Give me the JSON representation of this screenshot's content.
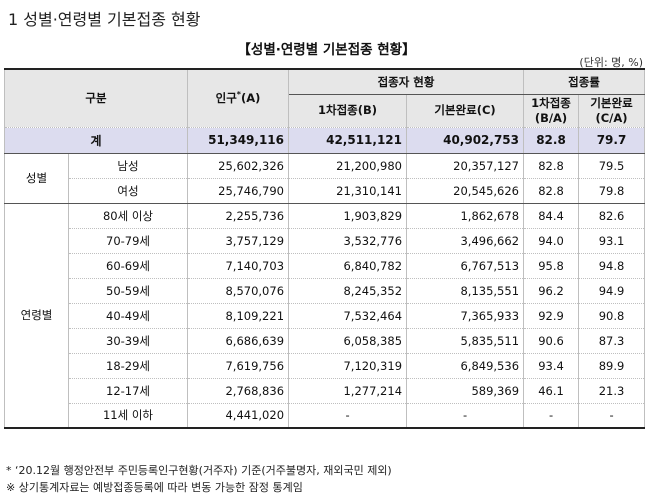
{
  "page_heading": "1 성별·연령별 기본접종 현황",
  "table_title": "【성별·연령별 기본접종 현황】",
  "unit_note": "(단위: 명, %)",
  "headers": {
    "category": "구분",
    "population": "인구",
    "population_mark": "*",
    "population_suffix": "(A)",
    "vaccinated_group": "접종자 현황",
    "first_dose": "1차접종(B)",
    "completed": "기본완료(C)",
    "rate_group": "접종률",
    "first_rate_line1": "1차접종",
    "first_rate_line2": "(B/A)",
    "completed_rate_line1": "기본완료",
    "completed_rate_line2": "(C/A)"
  },
  "total": {
    "label": "계",
    "population": "51,349,116",
    "first_dose": "42,511,121",
    "completed": "40,902,753",
    "first_rate": "82.8",
    "completed_rate": "79.7"
  },
  "groups": [
    {
      "name": "성별",
      "rows": [
        {
          "label": "남성",
          "population": "25,602,326",
          "first_dose": "21,200,980",
          "completed": "20,357,127",
          "first_rate": "82.8",
          "completed_rate": "79.5"
        },
        {
          "label": "여성",
          "population": "25,746,790",
          "first_dose": "21,310,141",
          "completed": "20,545,626",
          "first_rate": "82.8",
          "completed_rate": "79.8"
        }
      ]
    },
    {
      "name": "연령별",
      "rows": [
        {
          "label": "80세 이상",
          "population": "2,255,736",
          "first_dose": "1,903,829",
          "completed": "1,862,678",
          "first_rate": "84.4",
          "completed_rate": "82.6"
        },
        {
          "label": "70-79세",
          "population": "3,757,129",
          "first_dose": "3,532,776",
          "completed": "3,496,662",
          "first_rate": "94.0",
          "completed_rate": "93.1"
        },
        {
          "label": "60-69세",
          "population": "7,140,703",
          "first_dose": "6,840,782",
          "completed": "6,767,513",
          "first_rate": "95.8",
          "completed_rate": "94.8"
        },
        {
          "label": "50-59세",
          "population": "8,570,076",
          "first_dose": "8,245,352",
          "completed": "8,135,551",
          "first_rate": "96.2",
          "completed_rate": "94.9"
        },
        {
          "label": "40-49세",
          "population": "8,109,221",
          "first_dose": "7,532,464",
          "completed": "7,365,933",
          "first_rate": "92.9",
          "completed_rate": "90.8"
        },
        {
          "label": "30-39세",
          "population": "6,686,639",
          "first_dose": "6,058,385",
          "completed": "5,835,511",
          "first_rate": "90.6",
          "completed_rate": "87.3"
        },
        {
          "label": "18-29세",
          "population": "7,619,756",
          "first_dose": "7,120,319",
          "completed": "6,849,536",
          "first_rate": "93.4",
          "completed_rate": "89.9"
        },
        {
          "label": "12-17세",
          "population": "2,768,836",
          "first_dose": "1,277,214",
          "completed": "589,369",
          "first_rate": "46.1",
          "completed_rate": "21.3"
        },
        {
          "label": "11세 이하",
          "population": "4,441,020",
          "first_dose": "-",
          "completed": "-",
          "first_rate": "-",
          "completed_rate": "-"
        }
      ]
    }
  ],
  "footnotes": [
    "* ‘20.12월 행정안전부 주민등록인구현황(거주자) 기준(거주불명자, 재외국민 제외)",
    "※ 상기통계자료는 예방접종등록에 따라 변동 가능한 잠정 통계임"
  ]
}
